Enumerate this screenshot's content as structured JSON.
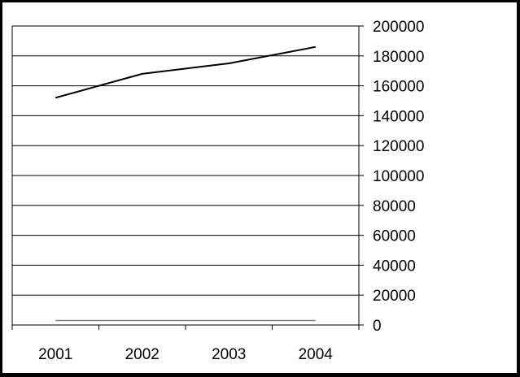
{
  "chart_data": {
    "type": "line",
    "title": "",
    "xlabel": "",
    "ylabel": "",
    "categories": [
      "2001",
      "2002",
      "2003",
      "2004"
    ],
    "ylim": [
      0,
      200000
    ],
    "yticks": [
      "0",
      "20000",
      "40000",
      "60000",
      "80000",
      "100000",
      "120000",
      "140000",
      "160000",
      "180000",
      "200000"
    ],
    "y_axis_side": "right",
    "grid": true,
    "legend": "none",
    "series": [
      {
        "values": [
          152000,
          168000,
          175000,
          186000
        ],
        "color": "#000000"
      },
      {
        "values": [
          3000,
          3000,
          3000,
          3000
        ],
        "color": "#808080"
      }
    ]
  }
}
